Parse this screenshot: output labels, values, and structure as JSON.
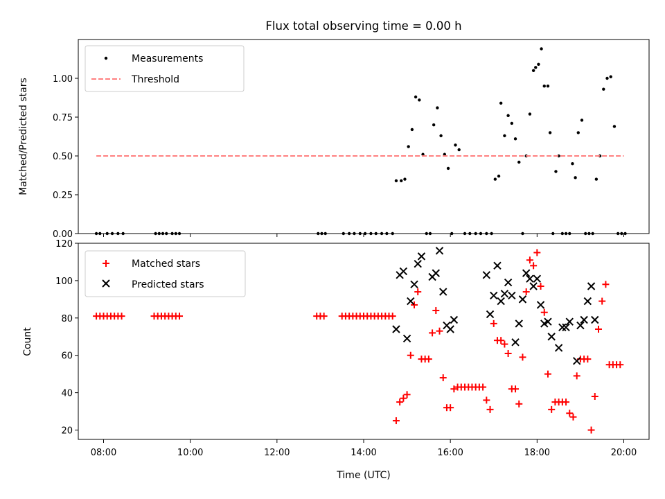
{
  "chart_data": {
    "title": "Flux total observing time = 0.00 h",
    "xlabel": "Time (UTC)",
    "xlim": [
      "07:25",
      "20:35"
    ],
    "xticks": [
      "08:00",
      "10:00",
      "12:00",
      "14:00",
      "16:00",
      "18:00",
      "20:00"
    ],
    "panels": [
      {
        "type": "scatter",
        "ylabel": "Matched/Predicted stars",
        "ylim": [
          0,
          1.25
        ],
        "yticks": [
          "0.00",
          "0.25",
          "0.50",
          "0.75",
          "1.00"
        ],
        "legend": "top-left",
        "series": [
          {
            "name": "Measurements",
            "marker": "dot",
            "color": "#000000",
            "points": [
              [
                "07:50",
                0
              ],
              [
                "07:55",
                0
              ],
              [
                "08:05",
                0
              ],
              [
                "08:12",
                0
              ],
              [
                "08:20",
                0
              ],
              [
                "08:27",
                0
              ],
              [
                "09:12",
                0
              ],
              [
                "09:17",
                0
              ],
              [
                "09:22",
                0
              ],
              [
                "09:27",
                0
              ],
              [
                "09:35",
                0
              ],
              [
                "09:40",
                0
              ],
              [
                "09:45",
                0
              ],
              [
                "12:57",
                0
              ],
              [
                "13:02",
                0
              ],
              [
                "13:07",
                0
              ],
              [
                "13:32",
                0
              ],
              [
                "13:40",
                0
              ],
              [
                "13:47",
                0
              ],
              [
                "13:55",
                0
              ],
              [
                "14:02",
                0
              ],
              [
                "14:10",
                0
              ],
              [
                "14:17",
                0
              ],
              [
                "14:25",
                0
              ],
              [
                "14:32",
                0
              ],
              [
                "14:40",
                0
              ],
              [
                "14:45",
                0.34
              ],
              [
                "14:52",
                0.34
              ],
              [
                "14:57",
                0.35
              ],
              [
                "15:02",
                0.56
              ],
              [
                "15:07",
                0.67
              ],
              [
                "15:12",
                0.88
              ],
              [
                "15:17",
                0.86
              ],
              [
                "15:22",
                0.51
              ],
              [
                "15:27",
                0
              ],
              [
                "15:32",
                0
              ],
              [
                "15:37",
                0.7
              ],
              [
                "15:42",
                0.81
              ],
              [
                "15:47",
                0.63
              ],
              [
                "15:52",
                0.51
              ],
              [
                "15:57",
                0.42
              ],
              [
                "16:02",
                0
              ],
              [
                "16:07",
                0.57
              ],
              [
                "16:12",
                0.54
              ],
              [
                "16:20",
                0
              ],
              [
                "16:27",
                0
              ],
              [
                "16:35",
                0
              ],
              [
                "16:42",
                0
              ],
              [
                "16:50",
                0
              ],
              [
                "16:57",
                0
              ],
              [
                "17:02",
                0.35
              ],
              [
                "17:07",
                0.37
              ],
              [
                "17:10",
                0.84
              ],
              [
                "17:15",
                0.63
              ],
              [
                "17:20",
                0.76
              ],
              [
                "17:25",
                0.71
              ],
              [
                "17:30",
                0.61
              ],
              [
                "17:35",
                0.46
              ],
              [
                "17:40",
                0
              ],
              [
                "17:45",
                0.5
              ],
              [
                "17:50",
                0.77
              ],
              [
                "17:55",
                1.05
              ],
              [
                "17:58",
                1.07
              ],
              [
                "18:02",
                1.09
              ],
              [
                "18:06",
                1.19
              ],
              [
                "18:10",
                0.95
              ],
              [
                "18:15",
                0.95
              ],
              [
                "18:18",
                0.65
              ],
              [
                "18:22",
                0
              ],
              [
                "18:26",
                0.4
              ],
              [
                "18:30",
                0.5
              ],
              [
                "18:35",
                0
              ],
              [
                "18:40",
                0
              ],
              [
                "18:45",
                0
              ],
              [
                "18:49",
                0.45
              ],
              [
                "18:53",
                0.36
              ],
              [
                "18:57",
                0.65
              ],
              [
                "19:02",
                0.73
              ],
              [
                "19:07",
                0
              ],
              [
                "19:12",
                0
              ],
              [
                "19:17",
                0
              ],
              [
                "19:22",
                0.35
              ],
              [
                "19:27",
                0.5
              ],
              [
                "19:32",
                0.93
              ],
              [
                "19:37",
                1.0
              ],
              [
                "19:42",
                1.01
              ],
              [
                "19:47",
                0.69
              ],
              [
                "19:52",
                0
              ],
              [
                "19:57",
                0
              ],
              [
                "20:02",
                0
              ]
            ]
          },
          {
            "name": "Threshold",
            "marker": "dashed-line",
            "color": "#ff7f7f",
            "points": [
              [
                "07:50",
                0.5
              ],
              [
                "20:00",
                0.5
              ]
            ]
          }
        ]
      },
      {
        "type": "scatter",
        "ylabel": "Count",
        "ylim": [
          15,
          120
        ],
        "yticks": [
          "20",
          "40",
          "60",
          "80",
          "100",
          "120"
        ],
        "legend": "top-left",
        "series": [
          {
            "name": "Matched stars",
            "marker": "plus",
            "color": "#ff0000",
            "points": [
              [
                "07:50",
                81
              ],
              [
                "07:55",
                81
              ],
              [
                "08:00",
                81
              ],
              [
                "08:05",
                81
              ],
              [
                "08:10",
                81
              ],
              [
                "08:15",
                81
              ],
              [
                "08:20",
                81
              ],
              [
                "08:25",
                81
              ],
              [
                "09:10",
                81
              ],
              [
                "09:15",
                81
              ],
              [
                "09:20",
                81
              ],
              [
                "09:25",
                81
              ],
              [
                "09:30",
                81
              ],
              [
                "09:35",
                81
              ],
              [
                "09:40",
                81
              ],
              [
                "09:45",
                81
              ],
              [
                "12:55",
                81
              ],
              [
                "13:00",
                81
              ],
              [
                "13:05",
                81
              ],
              [
                "13:30",
                81
              ],
              [
                "13:35",
                81
              ],
              [
                "13:40",
                81
              ],
              [
                "13:45",
                81
              ],
              [
                "13:50",
                81
              ],
              [
                "13:55",
                81
              ],
              [
                "14:00",
                81
              ],
              [
                "14:05",
                81
              ],
              [
                "14:10",
                81
              ],
              [
                "14:15",
                81
              ],
              [
                "14:20",
                81
              ],
              [
                "14:25",
                81
              ],
              [
                "14:30",
                81
              ],
              [
                "14:35",
                81
              ],
              [
                "14:40",
                81
              ],
              [
                "14:45",
                25
              ],
              [
                "14:50",
                35
              ],
              [
                "14:55",
                37
              ],
              [
                "15:00",
                39
              ],
              [
                "15:05",
                60
              ],
              [
                "15:10",
                87
              ],
              [
                "15:15",
                94
              ],
              [
                "15:20",
                58
              ],
              [
                "15:25",
                58
              ],
              [
                "15:30",
                58
              ],
              [
                "15:35",
                72
              ],
              [
                "15:40",
                84
              ],
              [
                "15:45",
                73
              ],
              [
                "15:50",
                48
              ],
              [
                "15:55",
                32
              ],
              [
                "16:00",
                32
              ],
              [
                "16:05",
                42
              ],
              [
                "16:10",
                43
              ],
              [
                "16:15",
                43
              ],
              [
                "16:20",
                43
              ],
              [
                "16:25",
                43
              ],
              [
                "16:30",
                43
              ],
              [
                "16:35",
                43
              ],
              [
                "16:40",
                43
              ],
              [
                "16:45",
                43
              ],
              [
                "16:50",
                36
              ],
              [
                "16:55",
                31
              ],
              [
                "17:00",
                77
              ],
              [
                "17:05",
                68
              ],
              [
                "17:10",
                68
              ],
              [
                "17:15",
                66
              ],
              [
                "17:20",
                61
              ],
              [
                "17:25",
                42
              ],
              [
                "17:30",
                42
              ],
              [
                "17:35",
                34
              ],
              [
                "17:40",
                59
              ],
              [
                "17:45",
                94
              ],
              [
                "17:50",
                111
              ],
              [
                "17:55",
                108
              ],
              [
                "18:00",
                115
              ],
              [
                "18:05",
                97
              ],
              [
                "18:10",
                83
              ],
              [
                "18:15",
                50
              ],
              [
                "18:20",
                31
              ],
              [
                "18:25",
                35
              ],
              [
                "18:30",
                35
              ],
              [
                "18:35",
                35
              ],
              [
                "18:40",
                35
              ],
              [
                "18:45",
                29
              ],
              [
                "18:50",
                27
              ],
              [
                "18:55",
                49
              ],
              [
                "19:00",
                58
              ],
              [
                "19:05",
                58
              ],
              [
                "19:10",
                58
              ],
              [
                "19:15",
                20
              ],
              [
                "19:20",
                38
              ],
              [
                "19:25",
                74
              ],
              [
                "19:30",
                89
              ],
              [
                "19:35",
                98
              ],
              [
                "19:40",
                55
              ],
              [
                "19:45",
                55
              ],
              [
                "19:50",
                55
              ],
              [
                "19:55",
                55
              ]
            ]
          },
          {
            "name": "Predicted stars",
            "marker": "x",
            "color": "#000000",
            "points": [
              [
                "14:45",
                74
              ],
              [
                "14:50",
                103
              ],
              [
                "14:55",
                105
              ],
              [
                "15:00",
                69
              ],
              [
                "15:05",
                89
              ],
              [
                "15:10",
                98
              ],
              [
                "15:15",
                109
              ],
              [
                "15:20",
                113
              ],
              [
                "15:35",
                102
              ],
              [
                "15:40",
                104
              ],
              [
                "15:45",
                116
              ],
              [
                "15:50",
                94
              ],
              [
                "15:55",
                76
              ],
              [
                "16:00",
                74
              ],
              [
                "16:05",
                79
              ],
              [
                "16:50",
                103
              ],
              [
                "16:55",
                82
              ],
              [
                "17:00",
                92
              ],
              [
                "17:05",
                108
              ],
              [
                "17:10",
                89
              ],
              [
                "17:15",
                93
              ],
              [
                "17:20",
                99
              ],
              [
                "17:25",
                92
              ],
              [
                "17:30",
                67
              ],
              [
                "17:35",
                77
              ],
              [
                "17:40",
                90
              ],
              [
                "17:45",
                104
              ],
              [
                "17:50",
                101
              ],
              [
                "17:55",
                97
              ],
              [
                "18:00",
                101
              ],
              [
                "18:05",
                87
              ],
              [
                "18:10",
                77
              ],
              [
                "18:15",
                78
              ],
              [
                "18:20",
                70
              ],
              [
                "18:30",
                64
              ],
              [
                "18:35",
                75
              ],
              [
                "18:40",
                75
              ],
              [
                "18:45",
                78
              ],
              [
                "18:55",
                57
              ],
              [
                "19:00",
                76
              ],
              [
                "19:05",
                79
              ],
              [
                "19:10",
                89
              ],
              [
                "19:15",
                97
              ],
              [
                "19:20",
                79
              ]
            ]
          }
        ]
      }
    ]
  }
}
